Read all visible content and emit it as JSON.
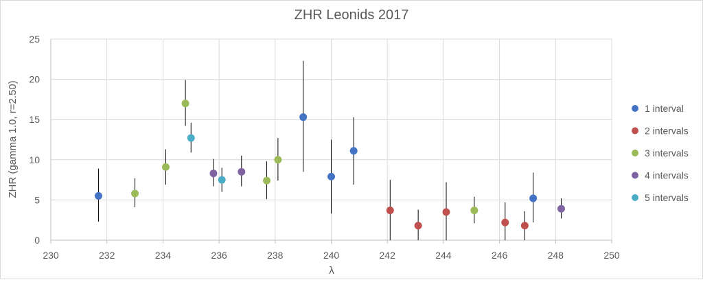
{
  "chart_data": {
    "type": "scatter",
    "title": "ZHR Leonids 2017",
    "xlabel": "λ",
    "ylabel": "ZHR (gamma 1.0, r=2.50)",
    "xlim": [
      230,
      250
    ],
    "ylim": [
      0,
      25
    ],
    "x_ticks": [
      "230",
      "232",
      "234",
      "236",
      "238",
      "240",
      "242",
      "244",
      "246",
      "248",
      "250"
    ],
    "y_ticks": [
      "0",
      "5",
      "10",
      "15",
      "20",
      "25"
    ],
    "grid": true,
    "legend_position": "right",
    "series": [
      {
        "name": "1 interval",
        "color": "#4472c4",
        "points": [
          {
            "x": 231.7,
            "y": 5.5,
            "ylow": 2.3,
            "yhigh": 8.9
          },
          {
            "x": 239.0,
            "y": 15.3,
            "ylow": 8.5,
            "yhigh": 22.3
          },
          {
            "x": 240.0,
            "y": 7.9,
            "ylow": 3.3,
            "yhigh": 12.5
          },
          {
            "x": 240.8,
            "y": 11.1,
            "ylow": 6.9,
            "yhigh": 15.3
          },
          {
            "x": 247.2,
            "y": 5.2,
            "ylow": 2.2,
            "yhigh": 8.4
          }
        ]
      },
      {
        "name": "2 intervals",
        "color": "#c0504d",
        "points": [
          {
            "x": 242.1,
            "y": 3.7,
            "ylow": 0.0,
            "yhigh": 7.5
          },
          {
            "x": 243.1,
            "y": 1.8,
            "ylow": 0.0,
            "yhigh": 3.8
          },
          {
            "x": 244.1,
            "y": 3.5,
            "ylow": 0.0,
            "yhigh": 7.2
          },
          {
            "x": 246.2,
            "y": 2.2,
            "ylow": 0.0,
            "yhigh": 4.7
          },
          {
            "x": 246.9,
            "y": 1.8,
            "ylow": 0.0,
            "yhigh": 3.6
          }
        ]
      },
      {
        "name": "3 intervals",
        "color": "#9bbb59",
        "points": [
          {
            "x": 233.0,
            "y": 5.8,
            "ylow": 4.1,
            "yhigh": 7.7
          },
          {
            "x": 234.1,
            "y": 9.1,
            "ylow": 6.9,
            "yhigh": 11.3
          },
          {
            "x": 234.8,
            "y": 17.0,
            "ylow": 14.2,
            "yhigh": 19.9
          },
          {
            "x": 237.7,
            "y": 7.4,
            "ylow": 5.1,
            "yhigh": 9.8
          },
          {
            "x": 238.1,
            "y": 10.0,
            "ylow": 7.4,
            "yhigh": 12.7
          },
          {
            "x": 245.1,
            "y": 3.7,
            "ylow": 2.1,
            "yhigh": 5.4
          }
        ]
      },
      {
        "name": "4 intervals",
        "color": "#8064a2",
        "points": [
          {
            "x": 235.8,
            "y": 8.3,
            "ylow": 6.7,
            "yhigh": 10.1
          },
          {
            "x": 236.8,
            "y": 8.5,
            "ylow": 6.7,
            "yhigh": 10.5
          },
          {
            "x": 248.2,
            "y": 3.9,
            "ylow": 2.7,
            "yhigh": 5.2
          }
        ]
      },
      {
        "name": "5 intervals",
        "color": "#4bacc6",
        "points": [
          {
            "x": 235.0,
            "y": 12.7,
            "ylow": 10.9,
            "yhigh": 14.6
          },
          {
            "x": 236.1,
            "y": 7.5,
            "ylow": 6.0,
            "yhigh": 9.0
          }
        ]
      }
    ]
  }
}
